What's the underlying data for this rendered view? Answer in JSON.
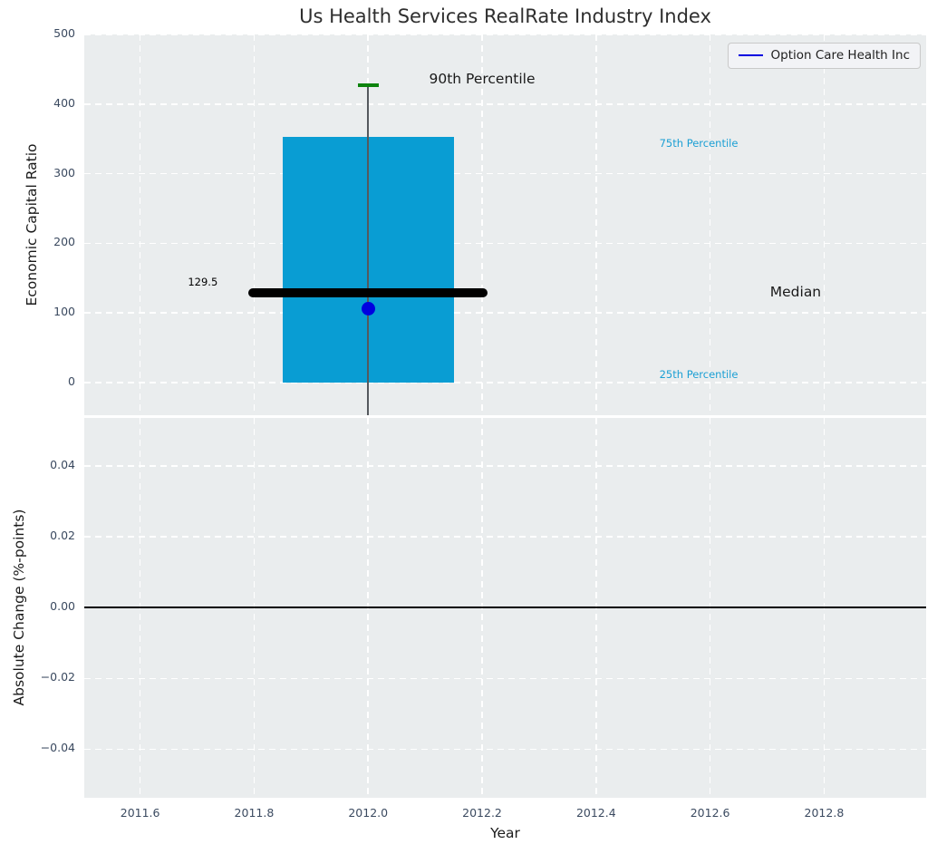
{
  "style": {
    "page_bg": "#ffffff",
    "plot_bg": "#eaedee",
    "grid_color": "#ffffff",
    "tick_label_color": "#3b4a60",
    "title_color": "#2e2e2e",
    "accent_cyan": "#1b9fd4",
    "company_blue": "#0000e0",
    "whisker_gray": "#55595e"
  },
  "chart_data": [
    {
      "type": "boxplot",
      "title": "Us Health Services RealRate Industry Index",
      "ylabel": "Economic Capital Ratio",
      "legend": {
        "label": "Option Care Health Inc",
        "color": "#0000e0",
        "position": "upper right"
      },
      "grid": true,
      "xlim": [
        2011.502,
        2012.979
      ],
      "ylim": [
        -46.9,
        500
      ],
      "xticks": {
        "values": [
          2011.6,
          2011.8,
          2012.0,
          2012.2,
          2012.4,
          2012.6,
          2012.8
        ],
        "labels": [
          "2011.6",
          "2011.8",
          "2012.0",
          "2012.2",
          "2012.4",
          "2012.6",
          "2012.8"
        ],
        "show_labels": false
      },
      "yticks": {
        "values": [
          0,
          100,
          200,
          300,
          400,
          500
        ],
        "labels": [
          "0",
          "100",
          "200",
          "300",
          "400",
          "500"
        ]
      },
      "box": {
        "x_center": 2012.0,
        "x_left": 2011.85,
        "x_right": 2012.15,
        "q25": 0,
        "q75": 353,
        "median": 129.5,
        "median_x_left": 2011.8,
        "median_x_right": 2012.2,
        "p90_whisker_top": 427,
        "whisker_bottom_clipped_at_axis": true,
        "fill_color": "#099dd3",
        "cap_color": "#0d830d",
        "median_color": "#000000"
      },
      "company_point": {
        "label": "Option Care Health Inc",
        "x": 2012.0,
        "y": 106,
        "color": "#0000e0"
      },
      "annotations": [
        {
          "text": "90th Percentile",
          "x": 2012.2,
          "y": 436,
          "color": "#1a1a1a",
          "size": 15.5
        },
        {
          "text": "75th Percentile",
          "x": 2012.58,
          "y": 344,
          "color": "#1b9fd4",
          "size": 11.5
        },
        {
          "text": "Median",
          "x": 2012.75,
          "y": 130,
          "color": "#1a1a1a",
          "size": 15.5
        },
        {
          "text": "25th Percentile",
          "x": 2012.58,
          "y": 12,
          "color": "#1b9fd4",
          "size": 11.5
        },
        {
          "text": "129.5",
          "x": 2011.71,
          "y": 145,
          "color": "#000000",
          "size": 11.5
        }
      ]
    },
    {
      "type": "line",
      "ylabel": "Absolute Change (%-points)",
      "xlabel": "Year",
      "grid": true,
      "xlim": [
        2011.502,
        2012.979
      ],
      "ylim": [
        -0.0537,
        0.0535
      ],
      "xticks": {
        "values": [
          2011.6,
          2011.8,
          2012.0,
          2012.2,
          2012.4,
          2012.6,
          2012.8
        ],
        "labels": [
          "2011.6",
          "2011.8",
          "2012.0",
          "2012.2",
          "2012.4",
          "2012.6",
          "2012.8"
        ],
        "show_labels": true
      },
      "yticks": {
        "values": [
          0.04,
          0.02,
          0,
          -0.02,
          -0.04
        ],
        "labels": [
          "0.04",
          "0.02",
          "0.00",
          "−0.02",
          "−0.04"
        ]
      },
      "zero_line": {
        "y": 0,
        "color": "#000000"
      },
      "series": []
    }
  ]
}
